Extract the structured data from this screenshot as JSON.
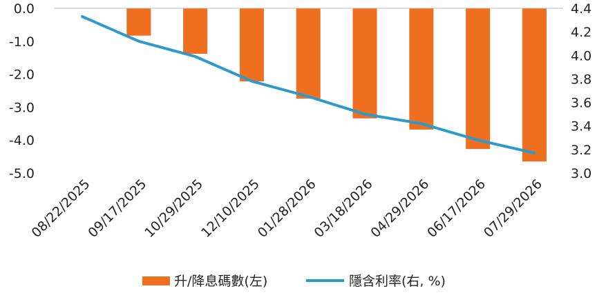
{
  "chart_data": {
    "type": "bar",
    "categories": [
      "08/22/2025",
      "09/17/2025",
      "10/29/2025",
      "12/10/2025",
      "01/28/2026",
      "03/18/2026",
      "04/29/2026",
      "06/17/2026",
      "07/29/2026"
    ],
    "series": [
      {
        "name": "升/降息碼數(左)",
        "type": "bar",
        "axis": "left",
        "color": "#ED6F1F",
        "values": [
          0.0,
          -0.83,
          -1.38,
          -2.22,
          -2.74,
          -3.34,
          -3.68,
          -4.27,
          -4.65
        ]
      },
      {
        "name": "隱含利率(右, %)",
        "type": "line",
        "axis": "right",
        "color": "#2E9AC9",
        "values": [
          4.33,
          4.12,
          3.99,
          3.78,
          3.65,
          3.5,
          3.42,
          3.28,
          3.17
        ]
      }
    ],
    "y_left": {
      "range": [
        -5.0,
        0.0
      ],
      "ticks": [
        "0.0",
        "-1.0",
        "-2.0",
        "-3.0",
        "-4.0",
        "-5.0"
      ]
    },
    "y_right": {
      "range": [
        3.0,
        4.4
      ],
      "ticks": [
        "4.4",
        "4.2",
        "4.0",
        "3.8",
        "3.6",
        "3.4",
        "3.2",
        "3.0"
      ]
    },
    "grid": false,
    "legend": "bottom"
  }
}
